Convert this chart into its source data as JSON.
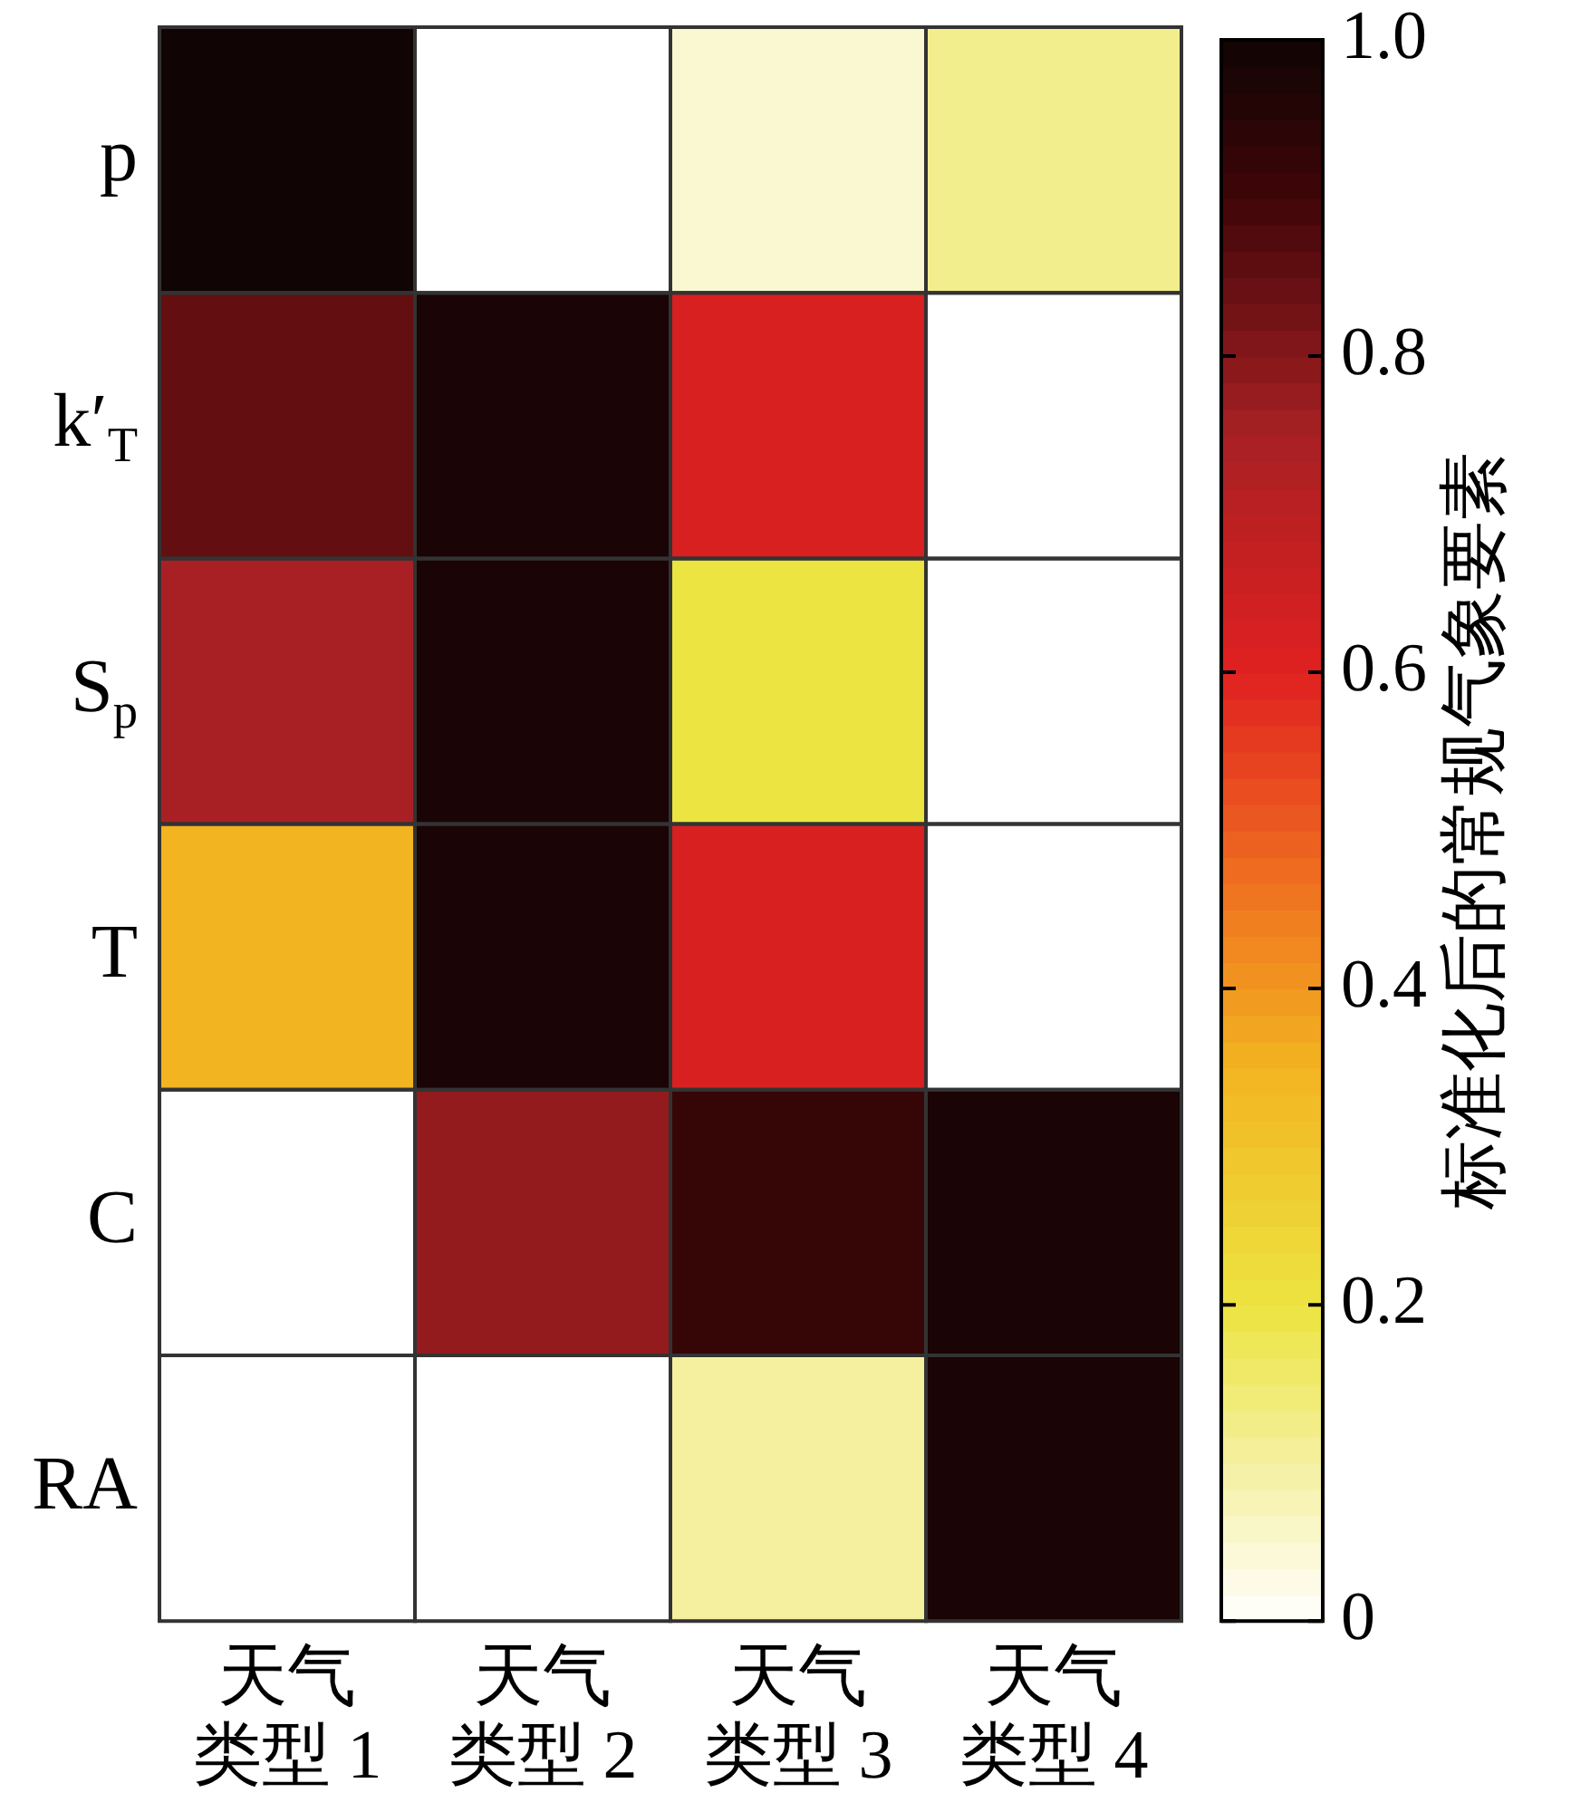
{
  "chart_data": {
    "type": "heatmap",
    "clabel": "标准化后的常规气象要素",
    "categories": [
      "天气类型 1",
      "天气类型 2",
      "天气类型 3",
      "天气类型 4"
    ],
    "y_categories": [
      "p",
      "k′$_{T}$",
      "S$_{p}$",
      "T",
      "C",
      "RA"
    ],
    "cells": [
      [
        1.0,
        0,
        0.05,
        0.12
      ],
      [
        0.85,
        0.98,
        0.62,
        0
      ],
      [
        0.75,
        0.98,
        0.2,
        0
      ],
      [
        0.35,
        0.98,
        0.62,
        0
      ],
      [
        0,
        0.78,
        0.92,
        0.98
      ],
      [
        0,
        0,
        0.1,
        0.98
      ]
    ],
    "clim": [
      0,
      1
    ],
    "cticks": [
      0,
      0.2,
      0.4,
      0.6,
      0.8,
      {
        "value": 1,
        "label": "1.0"
      }
    ]
  }
}
